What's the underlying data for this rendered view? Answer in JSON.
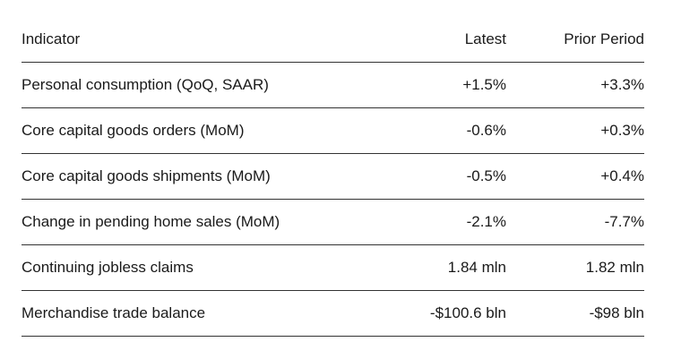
{
  "table": {
    "headers": {
      "indicator": "Indicator",
      "latest": "Latest",
      "prior": "Prior Period"
    },
    "rows": [
      {
        "indicator": "Personal consumption (QoQ, SAAR)",
        "latest": "+1.5%",
        "prior": "+3.3%"
      },
      {
        "indicator": "Core capital goods orders (MoM)",
        "latest": "-0.6%",
        "prior": "+0.3%"
      },
      {
        "indicator": "Core capital goods shipments (MoM)",
        "latest": "-0.5%",
        "prior": "+0.4%"
      },
      {
        "indicator": "Change in pending home sales (MoM)",
        "latest": "-2.1%",
        "prior": "-7.7%"
      },
      {
        "indicator": "Continuing jobless claims",
        "latest": "1.84 mln",
        "prior": "1.82 mln"
      },
      {
        "indicator": "Merchandise trade balance",
        "latest": "-$100.6 bln",
        "prior": "-$98 bln"
      }
    ]
  }
}
